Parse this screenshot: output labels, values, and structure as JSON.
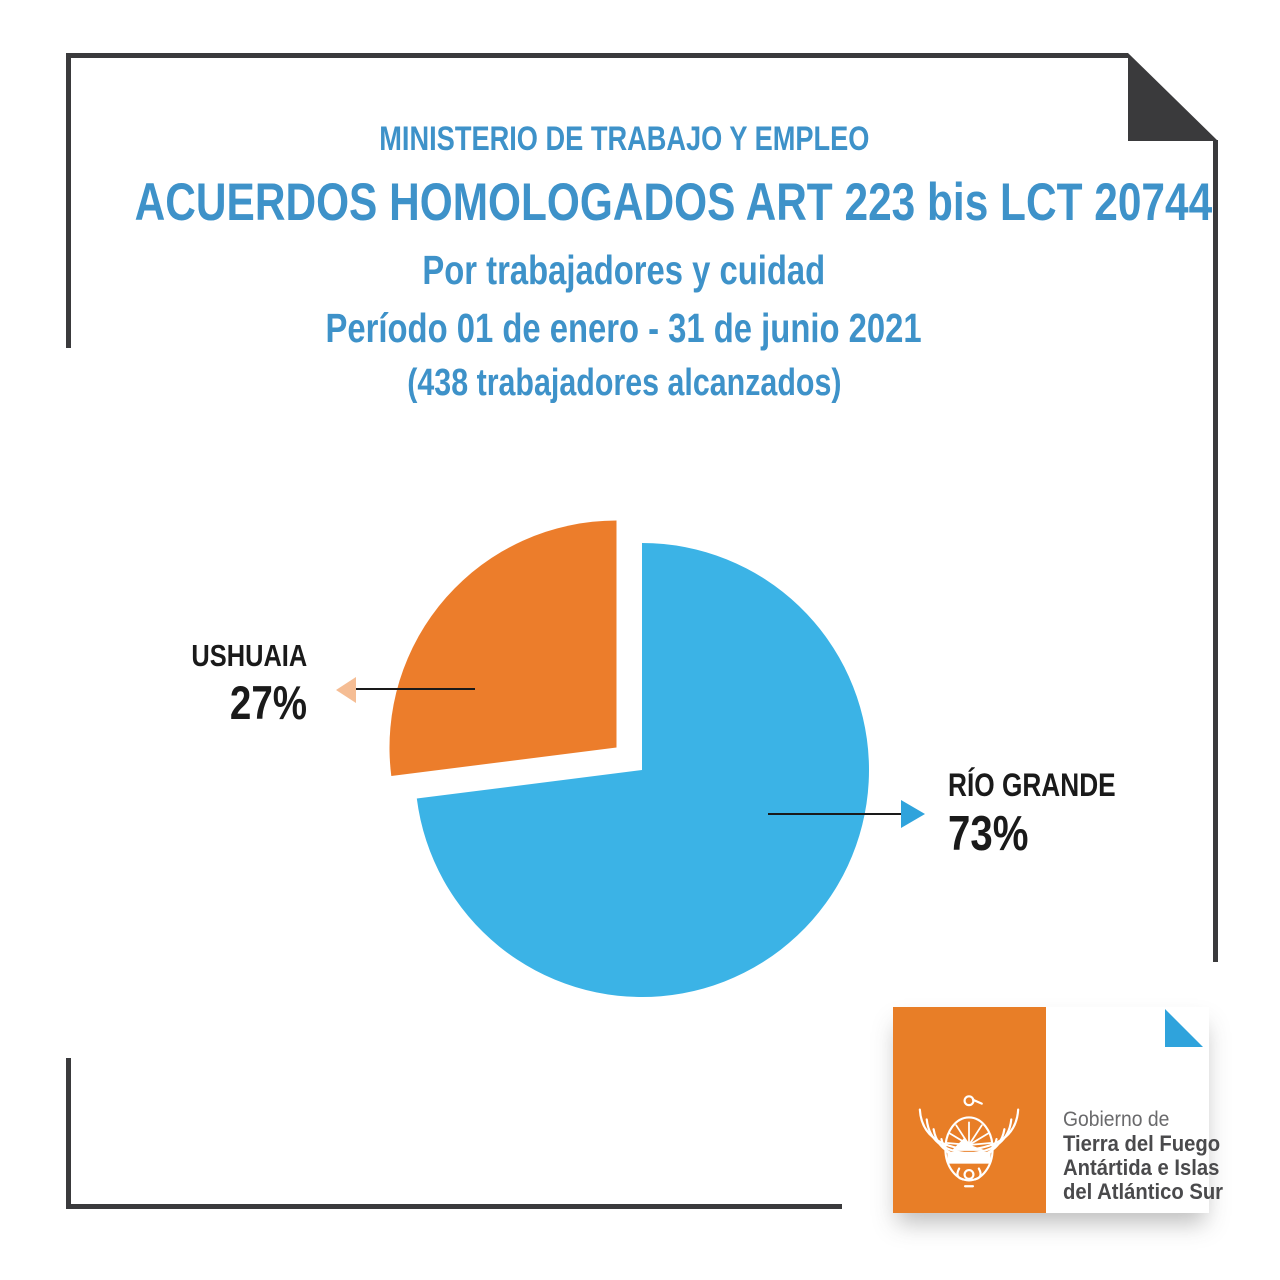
{
  "colors": {
    "heading-blue": "#3E92C9",
    "pie-blue": "#3BB3E6",
    "pie-orange": "#EC7D2B",
    "accent-blue": "#2FA3DC",
    "arrow-peach": "#F5BD94",
    "frame-dark": "#3A3A3C",
    "ink": "#1A1A1A",
    "logo-orange": "#E87E27",
    "logo-gray": "#6A6A6C",
    "logo-dark-gray": "#4A4A4C"
  },
  "header": {
    "ministry": "MINISTERIO DE TRABAJO Y EMPLEO",
    "title": "ACUERDOS HOMOLOGADOS ART 223 bis LCT 20744",
    "subtitle_line1": "Por trabajadores y cuidad",
    "subtitle_line2": "Período 01 de enero - 31 de junio 2021",
    "subtitle_line3": "(438 trabajadores alcanzados)"
  },
  "chart_data": {
    "type": "pie",
    "title": "ACUERDOS HOMOLOGADOS ART 223 bis LCT 20744",
    "subtitle": "Por trabajadores y cuidad — Período 01 de enero - 31 de junio 2021",
    "annotation": "(438 trabajadores alcanzados)",
    "total_workers": 438,
    "start_angle": "12-oclock",
    "direction": "clockwise",
    "legend_position": "callout-labels",
    "slices": [
      {
        "label": "RÍO GRANDE",
        "value_pct": 73,
        "display_pct": "73%",
        "color": "#3BB3E6",
        "exploded": false
      },
      {
        "label": "USHUAIA",
        "value_pct": 27,
        "display_pct": "27%",
        "color": "#EC7D2B",
        "exploded": true
      }
    ]
  },
  "logo": {
    "org_prefix": "Gobierno de",
    "org_line1": "Tierra del Fuego",
    "org_line2": "Antártida e Islas",
    "org_line3": "del Atlántico Sur"
  }
}
